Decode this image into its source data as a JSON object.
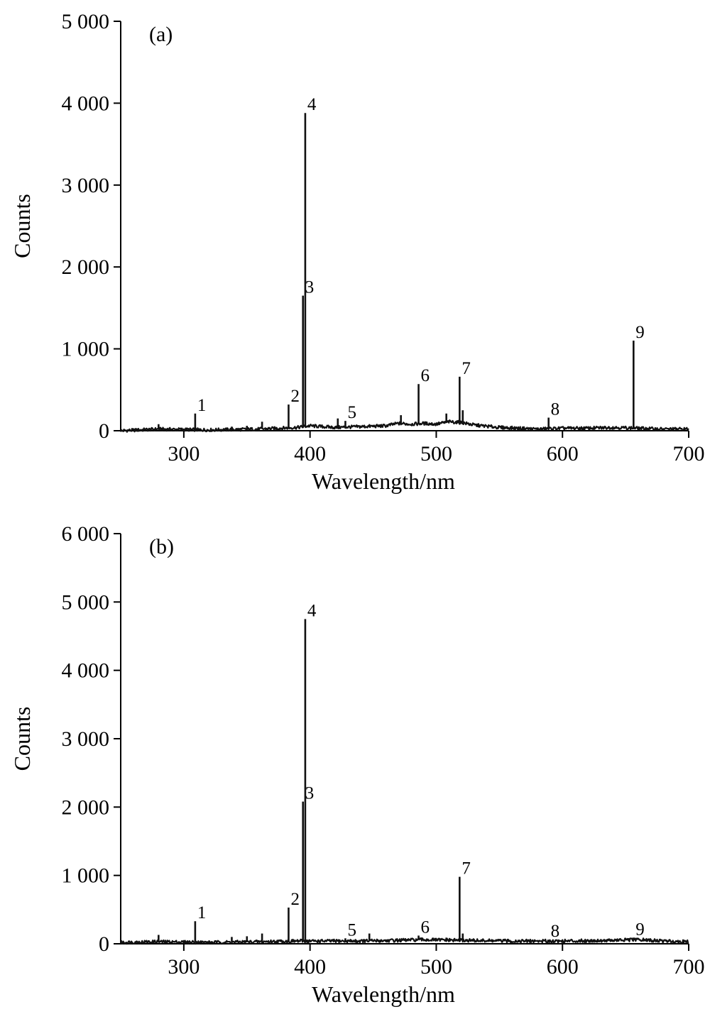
{
  "chart_data": [
    {
      "type": "line",
      "panel_label": "(a)",
      "xlabel": "Wavelength/nm",
      "ylabel": "Counts",
      "xlim": [
        250,
        700
      ],
      "ylim": [
        0,
        5000
      ],
      "x_ticks": [
        300,
        400,
        500,
        600,
        700
      ],
      "x_tick_labels": [
        "300",
        "400",
        "500",
        "600",
        "700"
      ],
      "y_ticks": [
        0,
        1000,
        2000,
        3000,
        4000,
        5000
      ],
      "y_tick_labels": [
        "0",
        "1 000",
        "2 000",
        "3 000",
        "4 000",
        "5 000"
      ],
      "grid": false,
      "color": "#111111",
      "baseline": [
        [
          250,
          0
        ],
        [
          280,
          20
        ],
        [
          320,
          10
        ],
        [
          360,
          20
        ],
        [
          390,
          40
        ],
        [
          400,
          60
        ],
        [
          420,
          40
        ],
        [
          440,
          50
        ],
        [
          460,
          60
        ],
        [
          470,
          90
        ],
        [
          480,
          80
        ],
        [
          490,
          90
        ],
        [
          500,
          80
        ],
        [
          510,
          110
        ],
        [
          520,
          100
        ],
        [
          530,
          70
        ],
        [
          550,
          40
        ],
        [
          580,
          20
        ],
        [
          600,
          30
        ],
        [
          620,
          30
        ],
        [
          640,
          40
        ],
        [
          660,
          30
        ],
        [
          680,
          20
        ],
        [
          700,
          20
        ]
      ],
      "peaks": [
        {
          "x": 280,
          "y": 80
        },
        {
          "label": "1",
          "x": 309,
          "y": 210
        },
        {
          "x": 338,
          "y": 50
        },
        {
          "x": 350,
          "y": 60
        },
        {
          "x": 362,
          "y": 110
        },
        {
          "label": "2",
          "x": 383,
          "y": 320
        },
        {
          "label": "3",
          "x": 394.4,
          "y": 1650
        },
        {
          "label": "4",
          "x": 396.2,
          "y": 3880
        },
        {
          "x": 422,
          "y": 150
        },
        {
          "label": "5",
          "x": 428,
          "y": 120
        },
        {
          "x": 472,
          "y": 190
        },
        {
          "label": "6",
          "x": 486,
          "y": 570
        },
        {
          "x": 508,
          "y": 210
        },
        {
          "label": "7",
          "x": 518.5,
          "y": 660
        },
        {
          "x": 521,
          "y": 250
        },
        {
          "label": "8",
          "x": 589,
          "y": 160
        },
        {
          "label": "9",
          "x": 656.3,
          "y": 1100
        }
      ]
    },
    {
      "type": "line",
      "panel_label": "(b)",
      "xlabel": "Wavelength/nm",
      "ylabel": "Counts",
      "xlim": [
        250,
        700
      ],
      "ylim": [
        0,
        6000
      ],
      "x_ticks": [
        300,
        400,
        500,
        600,
        700
      ],
      "x_tick_labels": [
        "300",
        "400",
        "500",
        "600",
        "700"
      ],
      "y_ticks": [
        0,
        1000,
        2000,
        3000,
        4000,
        5000,
        6000
      ],
      "y_tick_labels": [
        "0",
        "1 000",
        "2 000",
        "3 000",
        "4 000",
        "5 000",
        "6 000"
      ],
      "grid": false,
      "color": "#111111",
      "baseline": [
        [
          250,
          20
        ],
        [
          280,
          30
        ],
        [
          320,
          20
        ],
        [
          360,
          30
        ],
        [
          390,
          40
        ],
        [
          400,
          40
        ],
        [
          440,
          40
        ],
        [
          470,
          50
        ],
        [
          490,
          60
        ],
        [
          520,
          50
        ],
        [
          560,
          40
        ],
        [
          600,
          40
        ],
        [
          640,
          50
        ],
        [
          660,
          60
        ],
        [
          680,
          40
        ],
        [
          700,
          30
        ]
      ],
      "peaks": [
        {
          "x": 280,
          "y": 130
        },
        {
          "label": "1",
          "x": 309,
          "y": 330
        },
        {
          "x": 338,
          "y": 100
        },
        {
          "x": 350,
          "y": 110
        },
        {
          "x": 362,
          "y": 150
        },
        {
          "label": "2",
          "x": 383,
          "y": 530
        },
        {
          "label": "3",
          "x": 394.4,
          "y": 2080
        },
        {
          "label": "4",
          "x": 396.2,
          "y": 4750
        },
        {
          "label": "5",
          "x": 428,
          "y": 80
        },
        {
          "x": 447,
          "y": 150
        },
        {
          "label": "6",
          "x": 486,
          "y": 120
        },
        {
          "x": 508,
          "y": 90
        },
        {
          "label": "7",
          "x": 518.5,
          "y": 980
        },
        {
          "x": 521,
          "y": 150
        },
        {
          "label": "8",
          "x": 589,
          "y": 60
        },
        {
          "label": "9",
          "x": 656.3,
          "y": 90
        }
      ]
    }
  ]
}
